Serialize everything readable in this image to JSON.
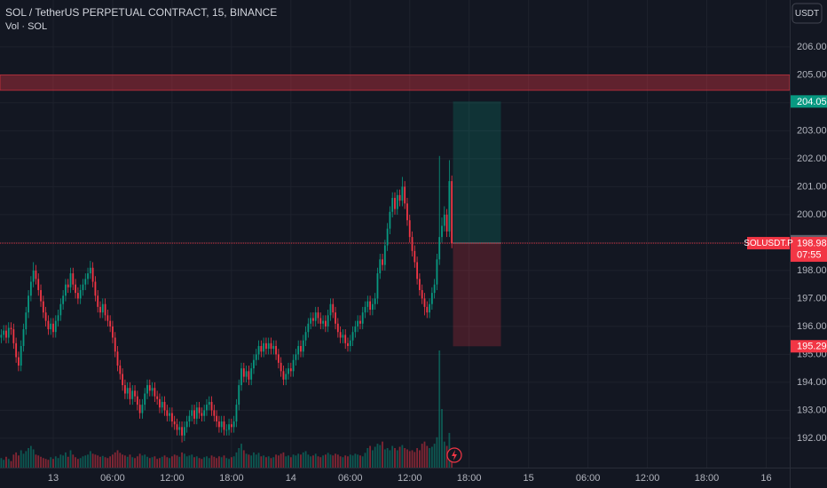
{
  "chart_data": {
    "type": "candlestick",
    "title": "SOL / TetherUS PERPETUAL CONTRACT, 15, BINANCE",
    "volume_label": "Vol · SOL",
    "currency": "USDT",
    "symbol": "SOLUSDT.P",
    "countdown": "07:55",
    "up_color": "#089981",
    "down_color": "#f23645",
    "grid": true,
    "xlim": [
      -0.5,
      318.5
    ],
    "ylim": [
      190.95,
      207.68
    ],
    "xticks": [
      {
        "value": 21,
        "label": "13"
      },
      {
        "value": 45,
        "label": "06:00"
      },
      {
        "value": 69,
        "label": "12:00"
      },
      {
        "value": 93,
        "label": "18:00"
      },
      {
        "value": 117,
        "label": "14"
      },
      {
        "value": 141,
        "label": "06:00"
      },
      {
        "value": 165,
        "label": "12:00"
      },
      {
        "value": 189,
        "label": "18:00"
      },
      {
        "value": 213,
        "label": "15"
      },
      {
        "value": 237,
        "label": "06:00"
      },
      {
        "value": 261,
        "label": "12:00"
      },
      {
        "value": 285,
        "label": "18:00"
      },
      {
        "value": 309,
        "label": "16"
      }
    ],
    "yticks": [
      {
        "value": 192,
        "label": "192.00"
      },
      {
        "value": 193,
        "label": "193.00"
      },
      {
        "value": 194,
        "label": "194.00"
      },
      {
        "value": 195,
        "label": "195.00"
      },
      {
        "value": 196,
        "label": "196.00"
      },
      {
        "value": 197,
        "label": "197.00"
      },
      {
        "value": 198,
        "label": "198.00"
      },
      {
        "value": 199,
        "label": "199.00"
      },
      {
        "value": 200,
        "label": "200.00"
      },
      {
        "value": 201,
        "label": "201.00"
      },
      {
        "value": 202,
        "label": "202.00"
      },
      {
        "value": 203,
        "label": "203.00"
      },
      {
        "value": 204,
        "label": "204.00"
      },
      {
        "value": 205,
        "label": "205.00"
      },
      {
        "value": 206,
        "label": "206.00"
      }
    ],
    "last_price": 198.98,
    "reference_price": 199.05,
    "zone": [
      204.45,
      205.0
    ],
    "position": {
      "target": 204.05,
      "entry": 198.98,
      "stop": 195.29
    },
    "ohlc": [
      [
        195.6,
        195.9,
        195.4,
        195.7
      ],
      [
        195.7,
        196.05,
        195.5,
        195.85
      ],
      [
        195.85,
        196.05,
        195.4,
        195.6
      ],
      [
        195.6,
        196.15,
        195.4,
        195.95
      ],
      [
        195.95,
        196.15,
        195.7,
        195.9
      ],
      [
        195.9,
        196.1,
        195.2,
        195.4
      ],
      [
        195.4,
        195.6,
        194.7,
        194.9
      ],
      [
        194.9,
        195.1,
        194.4,
        194.6
      ],
      [
        194.6,
        195.5,
        194.4,
        195.3
      ],
      [
        195.3,
        196.1,
        195.1,
        195.9
      ],
      [
        195.9,
        196.7,
        195.7,
        196.5
      ],
      [
        196.5,
        197.3,
        196.3,
        197.1
      ],
      [
        197.1,
        197.8,
        196.9,
        197.6
      ],
      [
        197.6,
        198.3,
        197.4,
        198.0
      ],
      [
        198.0,
        198.2,
        197.5,
        197.7
      ],
      [
        197.7,
        197.9,
        197.1,
        197.3
      ],
      [
        197.3,
        197.5,
        196.7,
        196.9
      ],
      [
        196.9,
        197.1,
        196.3,
        196.5
      ],
      [
        196.5,
        196.7,
        196.0,
        196.2
      ],
      [
        196.2,
        196.4,
        195.7,
        195.9
      ],
      [
        195.9,
        196.3,
        195.7,
        196.1
      ],
      [
        196.1,
        196.3,
        195.6,
        195.8
      ],
      [
        195.8,
        196.4,
        195.6,
        196.2
      ],
      [
        196.2,
        196.6,
        196.0,
        196.4
      ],
      [
        196.4,
        197.0,
        196.2,
        196.8
      ],
      [
        196.8,
        197.3,
        196.6,
        197.1
      ],
      [
        197.1,
        197.7,
        196.9,
        197.5
      ],
      [
        197.5,
        197.7,
        197.2,
        197.4
      ],
      [
        197.4,
        198.1,
        197.2,
        197.9
      ],
      [
        197.9,
        198.1,
        197.3,
        197.5
      ],
      [
        197.5,
        197.7,
        197.0,
        197.2
      ],
      [
        197.2,
        197.4,
        196.8,
        197.0
      ],
      [
        197.0,
        197.5,
        196.8,
        197.3
      ],
      [
        197.3,
        197.7,
        197.1,
        197.5
      ],
      [
        197.5,
        197.9,
        197.3,
        197.7
      ],
      [
        197.7,
        198.1,
        197.5,
        197.9
      ],
      [
        197.9,
        198.35,
        197.7,
        198.1
      ],
      [
        198.1,
        198.3,
        197.4,
        197.6
      ],
      [
        197.6,
        197.8,
        196.9,
        197.1
      ],
      [
        197.1,
        197.3,
        196.5,
        196.7
      ],
      [
        196.7,
        196.9,
        196.3,
        196.5
      ],
      [
        196.5,
        197.0,
        196.3,
        196.8
      ],
      [
        196.8,
        197.0,
        196.2,
        196.4
      ],
      [
        196.4,
        196.6,
        196.0,
        196.2
      ],
      [
        196.2,
        196.4,
        195.8,
        196.0
      ],
      [
        196.0,
        196.2,
        195.4,
        195.6
      ],
      [
        195.6,
        195.8,
        194.9,
        195.1
      ],
      [
        195.1,
        195.3,
        194.4,
        194.6
      ],
      [
        194.6,
        194.8,
        194.1,
        194.3
      ],
      [
        194.3,
        194.5,
        193.7,
        193.9
      ],
      [
        193.9,
        194.1,
        193.4,
        193.6
      ],
      [
        193.6,
        194.0,
        193.4,
        193.8
      ],
      [
        193.8,
        194.0,
        193.2,
        193.4
      ],
      [
        193.4,
        193.9,
        193.2,
        193.7
      ],
      [
        193.7,
        193.9,
        193.3,
        193.5
      ],
      [
        193.5,
        193.7,
        193.0,
        193.2
      ],
      [
        193.2,
        193.4,
        192.7,
        192.9
      ],
      [
        192.9,
        193.4,
        192.7,
        193.2
      ],
      [
        193.2,
        193.8,
        193.0,
        193.6
      ],
      [
        193.6,
        194.1,
        193.4,
        193.9
      ],
      [
        193.9,
        194.1,
        193.5,
        193.7
      ],
      [
        193.7,
        194.0,
        193.5,
        193.8
      ],
      [
        193.8,
        194.0,
        193.3,
        193.5
      ],
      [
        193.5,
        193.7,
        193.2,
        193.4
      ],
      [
        193.4,
        193.6,
        192.9,
        193.1
      ],
      [
        193.1,
        193.5,
        192.9,
        193.3
      ],
      [
        193.3,
        193.5,
        192.8,
        193.0
      ],
      [
        193.0,
        193.2,
        192.6,
        192.8
      ],
      [
        192.8,
        193.1,
        192.6,
        192.9
      ],
      [
        192.9,
        193.1,
        192.4,
        192.6
      ],
      [
        192.6,
        192.8,
        192.3,
        192.5
      ],
      [
        192.5,
        192.7,
        192.1,
        192.3
      ],
      [
        192.3,
        192.6,
        192.1,
        192.4
      ],
      [
        192.4,
        192.6,
        191.85,
        192.1
      ],
      [
        192.1,
        192.6,
        191.9,
        192.4
      ],
      [
        192.4,
        192.8,
        192.2,
        192.6
      ],
      [
        192.6,
        193.0,
        192.4,
        192.8
      ],
      [
        192.8,
        193.2,
        192.6,
        193.0
      ],
      [
        193.0,
        193.2,
        192.5,
        192.7
      ],
      [
        192.7,
        193.3,
        192.5,
        193.1
      ],
      [
        193.1,
        193.3,
        192.7,
        192.9
      ],
      [
        192.9,
        193.1,
        192.6,
        192.8
      ],
      [
        192.8,
        193.2,
        192.6,
        193.0
      ],
      [
        193.0,
        193.4,
        192.8,
        193.2
      ],
      [
        193.2,
        193.5,
        193.0,
        193.3
      ],
      [
        193.3,
        193.5,
        192.8,
        193.0
      ],
      [
        193.0,
        193.2,
        192.6,
        192.8
      ],
      [
        192.8,
        193.0,
        192.4,
        192.6
      ],
      [
        192.6,
        192.8,
        192.2,
        192.4
      ],
      [
        192.4,
        192.8,
        192.2,
        192.6
      ],
      [
        192.6,
        192.8,
        192.1,
        192.3
      ],
      [
        192.3,
        192.5,
        192.1,
        192.3
      ],
      [
        192.3,
        192.7,
        192.1,
        192.5
      ],
      [
        192.5,
        192.7,
        192.2,
        192.4
      ],
      [
        192.4,
        192.8,
        192.2,
        192.6
      ],
      [
        192.6,
        193.4,
        192.4,
        193.2
      ],
      [
        193.2,
        194.1,
        193.0,
        193.9
      ],
      [
        193.9,
        194.7,
        193.7,
        194.5
      ],
      [
        194.5,
        194.7,
        194.0,
        194.2
      ],
      [
        194.2,
        194.6,
        194.0,
        194.4
      ],
      [
        194.4,
        194.6,
        193.9,
        194.1
      ],
      [
        194.1,
        194.7,
        193.9,
        194.5
      ],
      [
        194.5,
        195.0,
        194.3,
        194.8
      ],
      [
        194.8,
        195.2,
        194.6,
        195.0
      ],
      [
        195.0,
        195.5,
        194.8,
        195.3
      ],
      [
        195.3,
        195.5,
        194.9,
        195.1
      ],
      [
        195.1,
        195.6,
        194.9,
        195.4
      ],
      [
        195.4,
        195.6,
        195.0,
        195.2
      ],
      [
        195.2,
        195.6,
        195.0,
        195.4
      ],
      [
        195.4,
        195.6,
        195.0,
        195.2
      ],
      [
        195.2,
        195.5,
        195.0,
        195.3
      ],
      [
        195.3,
        195.5,
        194.8,
        195.0
      ],
      [
        195.0,
        195.2,
        194.5,
        194.7
      ],
      [
        194.7,
        194.9,
        194.2,
        194.4
      ],
      [
        194.4,
        194.6,
        193.9,
        194.1
      ],
      [
        194.1,
        194.5,
        193.9,
        194.3
      ],
      [
        194.3,
        194.7,
        194.1,
        194.5
      ],
      [
        194.5,
        194.7,
        194.2,
        194.4
      ],
      [
        194.4,
        195.0,
        194.2,
        194.8
      ],
      [
        194.8,
        195.2,
        194.6,
        195.0
      ],
      [
        195.0,
        195.5,
        194.8,
        195.3
      ],
      [
        195.3,
        195.5,
        194.9,
        195.1
      ],
      [
        195.1,
        195.7,
        194.9,
        195.5
      ],
      [
        195.5,
        196.0,
        195.3,
        195.8
      ],
      [
        195.8,
        196.3,
        195.6,
        196.1
      ],
      [
        196.1,
        196.5,
        195.9,
        196.3
      ],
      [
        196.3,
        196.5,
        196.0,
        196.2
      ],
      [
        196.2,
        196.7,
        196.0,
        196.5
      ],
      [
        196.5,
        196.7,
        196.1,
        196.3
      ],
      [
        196.3,
        196.5,
        195.9,
        196.1
      ],
      [
        196.1,
        196.4,
        195.9,
        196.2
      ],
      [
        196.2,
        196.4,
        195.8,
        196.0
      ],
      [
        196.0,
        196.6,
        195.8,
        196.4
      ],
      [
        196.4,
        197.0,
        196.2,
        196.8
      ],
      [
        196.8,
        197.0,
        196.3,
        196.5
      ],
      [
        196.5,
        196.7,
        195.9,
        196.1
      ],
      [
        196.1,
        196.3,
        195.6,
        195.8
      ],
      [
        195.8,
        196.0,
        195.4,
        195.6
      ],
      [
        195.6,
        195.9,
        195.4,
        195.7
      ],
      [
        195.7,
        195.9,
        195.2,
        195.4
      ],
      [
        195.4,
        195.6,
        195.1,
        195.3
      ],
      [
        195.3,
        195.7,
        195.1,
        195.5
      ],
      [
        195.5,
        196.0,
        195.3,
        195.8
      ],
      [
        195.8,
        196.2,
        195.6,
        196.0
      ],
      [
        196.0,
        196.4,
        195.8,
        196.2
      ],
      [
        196.2,
        196.4,
        195.9,
        196.1
      ],
      [
        196.1,
        196.7,
        195.9,
        196.5
      ],
      [
        196.5,
        196.9,
        196.3,
        196.7
      ],
      [
        196.7,
        197.1,
        196.5,
        196.9
      ],
      [
        196.9,
        197.1,
        196.4,
        196.6
      ],
      [
        196.6,
        197.0,
        196.4,
        196.8
      ],
      [
        196.8,
        197.2,
        196.6,
        197.0
      ],
      [
        197.0,
        198.1,
        196.8,
        197.9
      ],
      [
        197.9,
        198.6,
        197.7,
        198.4
      ],
      [
        198.4,
        198.6,
        198.0,
        198.2
      ],
      [
        198.2,
        199.1,
        198.0,
        198.9
      ],
      [
        198.9,
        199.7,
        198.7,
        199.5
      ],
      [
        199.5,
        200.3,
        199.3,
        200.1
      ],
      [
        200.1,
        200.8,
        199.9,
        200.6
      ],
      [
        200.6,
        200.8,
        200.0,
        200.2
      ],
      [
        200.2,
        200.9,
        200.0,
        200.7
      ],
      [
        200.7,
        200.9,
        200.3,
        200.5
      ],
      [
        200.5,
        201.35,
        200.3,
        201.0
      ],
      [
        201.0,
        201.2,
        200.2,
        200.4
      ],
      [
        200.4,
        200.6,
        199.6,
        199.8
      ],
      [
        199.8,
        200.0,
        199.0,
        199.2
      ],
      [
        199.2,
        199.4,
        198.5,
        198.7
      ],
      [
        198.7,
        198.9,
        198.1,
        198.3
      ],
      [
        198.3,
        198.5,
        197.5,
        197.7
      ],
      [
        197.7,
        197.9,
        197.1,
        197.3
      ],
      [
        197.3,
        197.5,
        196.8,
        197.0
      ],
      [
        197.0,
        197.2,
        196.4,
        196.7
      ],
      [
        196.7,
        196.9,
        196.3,
        196.5
      ],
      [
        196.5,
        197.0,
        196.3,
        196.8
      ],
      [
        196.8,
        197.4,
        196.6,
        197.2
      ],
      [
        197.2,
        197.7,
        197.0,
        197.5
      ],
      [
        197.5,
        198.6,
        197.3,
        198.4
      ],
      [
        198.4,
        202.1,
        198.2,
        199.2
      ],
      [
        199.2,
        199.9,
        199.0,
        199.6
      ],
      [
        199.6,
        200.3,
        199.4,
        200.0
      ],
      [
        200.0,
        200.2,
        199.2,
        199.4
      ],
      [
        199.4,
        201.95,
        199.2,
        201.2
      ],
      [
        201.2,
        201.4,
        198.8,
        198.98
      ]
    ],
    "volume": [
      22,
      18,
      25,
      20,
      15,
      30,
      35,
      28,
      40,
      32,
      38,
      45,
      50,
      42,
      30,
      28,
      25,
      22,
      20,
      18,
      24,
      20,
      26,
      22,
      30,
      28,
      35,
      25,
      40,
      30,
      24,
      20,
      22,
      26,
      28,
      30,
      38,
      32,
      30,
      28,
      25,
      27,
      24,
      22,
      26,
      30,
      35,
      40,
      34,
      30,
      28,
      25,
      30,
      24,
      22,
      26,
      32,
      28,
      30,
      25,
      22,
      24,
      26,
      20,
      22,
      25,
      28,
      24,
      22,
      26,
      30,
      28,
      25,
      35,
      32,
      26,
      28,
      30,
      24,
      26,
      22,
      20,
      24,
      26,
      22,
      28,
      25,
      22,
      26,
      24,
      28,
      22,
      20,
      24,
      26,
      35,
      45,
      55,
      40,
      32,
      30,
      28,
      35,
      30,
      34,
      26,
      28,
      24,
      26,
      22,
      24,
      30,
      28,
      32,
      35,
      26,
      28,
      24,
      30,
      28,
      32,
      30,
      35,
      38,
      30,
      26,
      28,
      32,
      26,
      24,
      28,
      30,
      34,
      30,
      28,
      32,
      30,
      26,
      24,
      28,
      26,
      30,
      28,
      32,
      30,
      28,
      26,
      34,
      45,
      50,
      40,
      48,
      55,
      52,
      60,
      42,
      45,
      40,
      50,
      45,
      40,
      48,
      52,
      45,
      42,
      38,
      40,
      36,
      45,
      40,
      55,
      60,
      50,
      45,
      48,
      55,
      70,
      270,
      135,
      60,
      50,
      80,
      25
    ]
  }
}
